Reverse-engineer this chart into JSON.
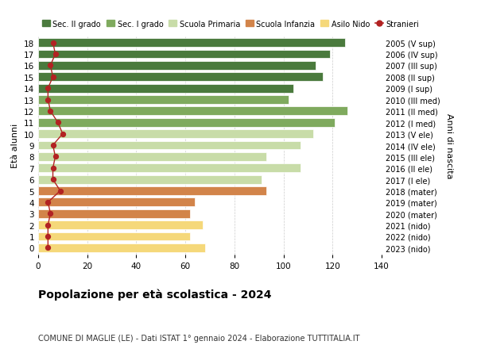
{
  "ages": [
    18,
    17,
    16,
    15,
    14,
    13,
    12,
    11,
    10,
    9,
    8,
    7,
    6,
    5,
    4,
    3,
    2,
    1,
    0
  ],
  "right_labels": [
    "2005 (V sup)",
    "2006 (IV sup)",
    "2007 (III sup)",
    "2008 (II sup)",
    "2009 (I sup)",
    "2010 (III med)",
    "2011 (II med)",
    "2012 (I med)",
    "2013 (V ele)",
    "2014 (IV ele)",
    "2015 (III ele)",
    "2016 (II ele)",
    "2017 (I ele)",
    "2018 (mater)",
    "2019 (mater)",
    "2020 (mater)",
    "2021 (nido)",
    "2022 (nido)",
    "2023 (nido)"
  ],
  "bar_values": [
    125,
    119,
    113,
    116,
    104,
    102,
    126,
    121,
    112,
    107,
    93,
    107,
    91,
    93,
    64,
    62,
    67,
    62,
    68
  ],
  "stranieri_values": [
    6,
    7,
    5,
    6,
    4,
    4,
    5,
    8,
    10,
    6,
    7,
    6,
    6,
    9,
    4,
    5,
    4,
    4,
    4
  ],
  "bar_colors": [
    "#4a7a3d",
    "#4a7a3d",
    "#4a7a3d",
    "#4a7a3d",
    "#4a7a3d",
    "#7faa5e",
    "#7faa5e",
    "#7faa5e",
    "#c8dca8",
    "#c8dca8",
    "#c8dca8",
    "#c8dca8",
    "#c8dca8",
    "#d2844a",
    "#d2844a",
    "#d2844a",
    "#f5d87a",
    "#f5d87a",
    "#f5d87a"
  ],
  "legend_labels": [
    "Sec. II grado",
    "Sec. I grado",
    "Scuola Primaria",
    "Scuola Infanzia",
    "Asilo Nido",
    "Stranieri"
  ],
  "legend_colors": [
    "#4a7a3d",
    "#7faa5e",
    "#c8dca8",
    "#d2844a",
    "#f5d87a",
    "#b22222"
  ],
  "title": "Popolazione per età scolastica - 2024",
  "subtitle": "COMUNE DI MAGLIE (LE) - Dati ISTAT 1° gennaio 2024 - Elaborazione TUTTITALIA.IT",
  "ylabel": "Età alunni",
  "right_ylabel": "Anni di nascita",
  "xlim": [
    0,
    140
  ],
  "xticks": [
    0,
    20,
    40,
    60,
    80,
    100,
    120,
    140
  ],
  "background_color": "#ffffff",
  "stranieri_color": "#b22222",
  "bar_height": 0.75
}
